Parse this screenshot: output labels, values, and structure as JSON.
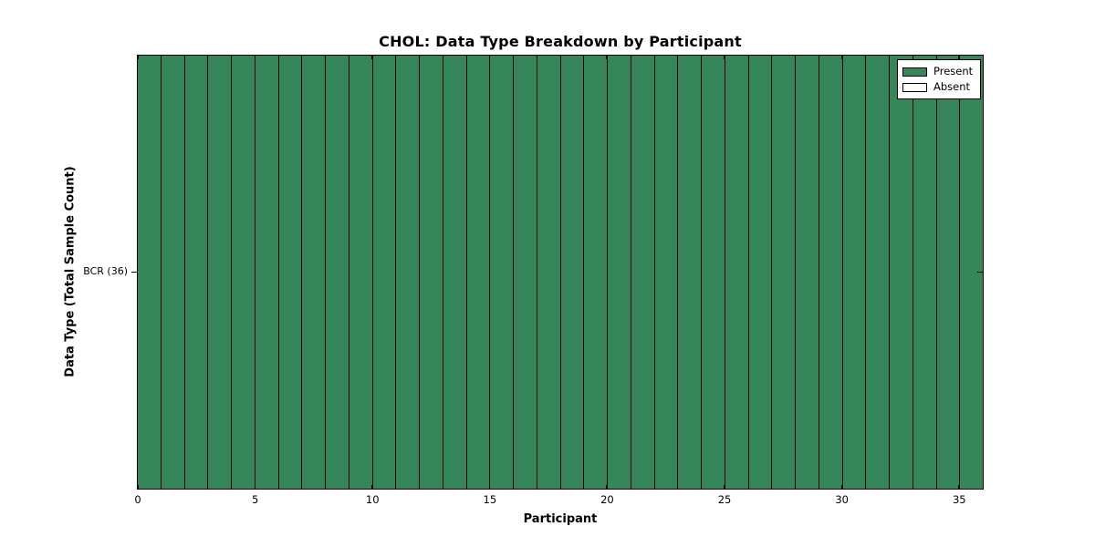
{
  "chart_data": {
    "type": "heatmap",
    "title": "CHOL: Data Type Breakdown by Participant",
    "xlabel": "Participant",
    "ylabel": "Data Type (Total Sample Count)",
    "xlim": [
      0,
      36
    ],
    "x_ticks": [
      "0",
      "5",
      "10",
      "15",
      "20",
      "25",
      "30",
      "35"
    ],
    "x_tick_values": [
      0,
      5,
      10,
      15,
      20,
      25,
      30,
      35
    ],
    "grid": false,
    "rows": [
      {
        "label": "BCR (36)",
        "data_type": "BCR",
        "total_sample_count": 36,
        "values": [
          1,
          1,
          1,
          1,
          1,
          1,
          1,
          1,
          1,
          1,
          1,
          1,
          1,
          1,
          1,
          1,
          1,
          1,
          1,
          1,
          1,
          1,
          1,
          1,
          1,
          1,
          1,
          1,
          1,
          1,
          1,
          1,
          1,
          1,
          1,
          1
        ]
      }
    ],
    "value_meaning": {
      "1": "Present",
      "0": "Absent"
    },
    "legend": {
      "position": "upper right",
      "items": [
        {
          "label": "Present",
          "color": "#35875A"
        },
        {
          "label": "Absent",
          "color": "#FFFFFF"
        }
      ]
    },
    "colors": {
      "present": "#35875A",
      "absent": "#FFFFFF",
      "edge": "#000000",
      "background": "#FFFFFF"
    }
  }
}
